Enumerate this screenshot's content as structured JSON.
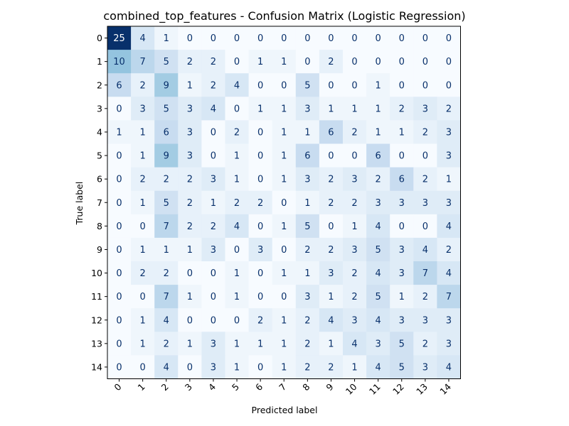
{
  "chart_data": {
    "type": "heatmap",
    "title": "combined_top_features - Confusion Matrix (Logistic Regression)",
    "xlabel": "Predicted label",
    "ylabel": "True label",
    "x_ticks": [
      "0",
      "1",
      "2",
      "3",
      "4",
      "5",
      "6",
      "7",
      "8",
      "9",
      "10",
      "11",
      "12",
      "13",
      "14"
    ],
    "y_ticks": [
      "0",
      "1",
      "2",
      "3",
      "4",
      "5",
      "6",
      "7",
      "8",
      "9",
      "10",
      "11",
      "12",
      "13",
      "14"
    ],
    "colormap": "Blues",
    "vmin": 0,
    "vmax": 25,
    "matrix": [
      [
        25,
        4,
        1,
        0,
        0,
        0,
        0,
        0,
        0,
        0,
        0,
        0,
        0,
        0,
        0
      ],
      [
        10,
        7,
        5,
        2,
        2,
        0,
        1,
        1,
        0,
        2,
        0,
        0,
        0,
        0,
        0
      ],
      [
        6,
        2,
        9,
        1,
        2,
        4,
        0,
        0,
        5,
        0,
        0,
        1,
        0,
        0,
        0
      ],
      [
        0,
        3,
        5,
        3,
        4,
        0,
        1,
        1,
        3,
        1,
        1,
        1,
        2,
        3,
        2
      ],
      [
        1,
        1,
        6,
        3,
        0,
        2,
        0,
        1,
        1,
        6,
        2,
        1,
        1,
        2,
        3
      ],
      [
        0,
        1,
        9,
        3,
        0,
        1,
        0,
        1,
        6,
        0,
        0,
        6,
        0,
        0,
        3
      ],
      [
        0,
        2,
        2,
        2,
        3,
        1,
        0,
        1,
        3,
        2,
        3,
        2,
        6,
        2,
        1
      ],
      [
        0,
        1,
        5,
        2,
        1,
        2,
        2,
        0,
        1,
        2,
        2,
        3,
        3,
        3,
        3
      ],
      [
        0,
        0,
        7,
        2,
        2,
        4,
        0,
        1,
        5,
        0,
        1,
        4,
        0,
        0,
        4
      ],
      [
        0,
        1,
        1,
        1,
        3,
        0,
        3,
        0,
        2,
        2,
        3,
        5,
        3,
        4,
        2
      ],
      [
        0,
        2,
        2,
        0,
        0,
        1,
        0,
        1,
        1,
        3,
        2,
        4,
        3,
        7,
        4
      ],
      [
        0,
        0,
        7,
        1,
        0,
        1,
        0,
        0,
        3,
        1,
        2,
        5,
        1,
        2,
        7
      ],
      [
        0,
        1,
        4,
        0,
        0,
        0,
        2,
        1,
        2,
        4,
        3,
        4,
        3,
        3,
        3
      ],
      [
        0,
        1,
        2,
        1,
        3,
        1,
        1,
        1,
        2,
        1,
        4,
        3,
        5,
        2,
        3
      ],
      [
        0,
        0,
        4,
        0,
        3,
        1,
        0,
        1,
        2,
        2,
        1,
        4,
        5,
        3,
        4
      ]
    ]
  }
}
